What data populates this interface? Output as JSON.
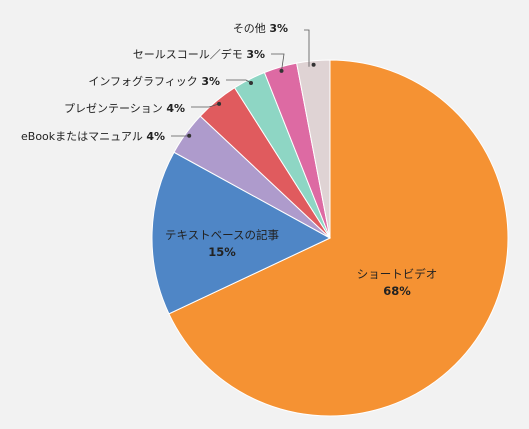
{
  "chart_data": {
    "type": "pie",
    "slices": [
      {
        "label": "ショートビデオ",
        "value": 68,
        "value_label": "68%",
        "color": "#f59233"
      },
      {
        "label": "テキストベースの記事",
        "value": 15,
        "value_label": "15%",
        "color": "#4f86c6"
      },
      {
        "label": "eBookまたはマニュアル",
        "value": 4,
        "value_label": "4%",
        "color": "#ae9bcc"
      },
      {
        "label": "プレゼンテーション",
        "value": 4,
        "value_label": "4%",
        "color": "#e05b5e"
      },
      {
        "label": "インフォグラフィック",
        "value": 3,
        "value_label": "3%",
        "color": "#8ed6c4"
      },
      {
        "label": "セールスコール／デモ",
        "value": 3,
        "value_label": "3%",
        "color": "#dd6aa3"
      },
      {
        "label": "その他",
        "value": 3,
        "value_label": "3%",
        "color": "#dfd3d4"
      }
    ],
    "start_angle": "12 o'clock",
    "direction": "clockwise"
  }
}
